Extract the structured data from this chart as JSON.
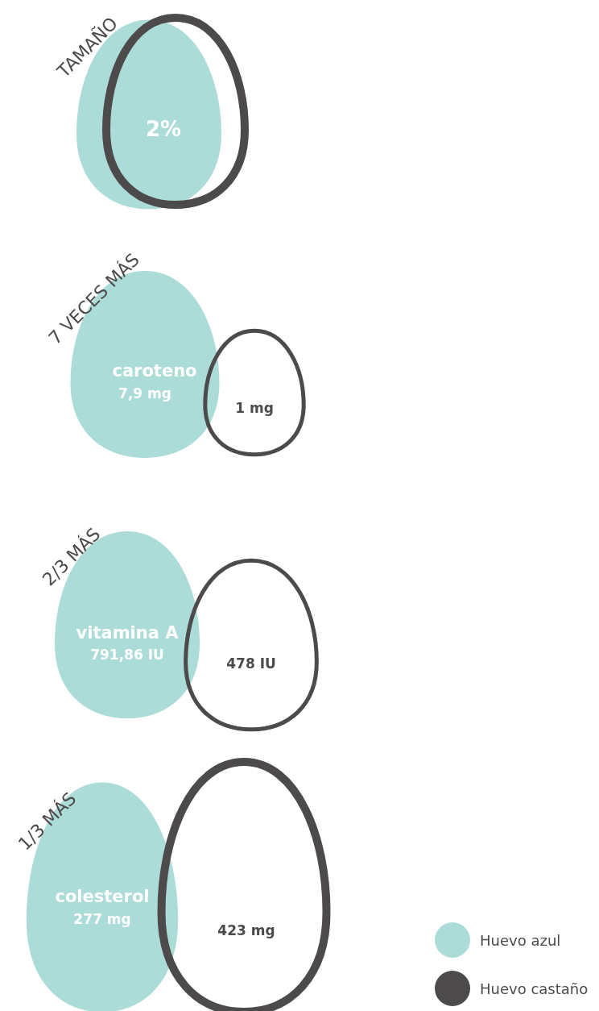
{
  "chart_data": [
    {
      "type": "other",
      "title": "TAMAÑO",
      "annotations": [
        "2%"
      ],
      "series": [
        {
          "color": "#acdcd8"
        },
        {
          "color": "#4d4a4b"
        }
      ]
    },
    {
      "type": "other",
      "title": "7 VECES MÁS",
      "categories": [
        "caroteno"
      ],
      "series": [
        {
          "color": "#acdcd8",
          "values": [
            7.9
          ],
          "value_labels": [
            "7,9 mg"
          ]
        },
        {
          "color": "#4d4a4b",
          "values": [
            1
          ],
          "value_labels": [
            "1 mg"
          ]
        }
      ]
    },
    {
      "type": "other",
      "title": "2/3 MÁS",
      "categories": [
        "vitamina A"
      ],
      "series": [
        {
          "color": "#acdcd8",
          "values": [
            791.86
          ],
          "value_labels": [
            "791,86 IU"
          ]
        },
        {
          "color": "#4d4a4b",
          "values": [
            478
          ],
          "value_labels": [
            "478 IU"
          ]
        }
      ]
    },
    {
      "type": "other",
      "title": "1/3 MÁS",
      "categories": [
        "colesterol"
      ],
      "legend": "bottom right",
      "series": [
        {
          "name": "Huevo azul",
          "color": "#acdcd8",
          "values": [
            277
          ],
          "value_labels": [
            "277 mg"
          ]
        },
        {
          "name": "Huevo castaño",
          "color": "#4d4a4b",
          "values": [
            423
          ],
          "value_labels": [
            "423 mg"
          ]
        }
      ]
    }
  ]
}
